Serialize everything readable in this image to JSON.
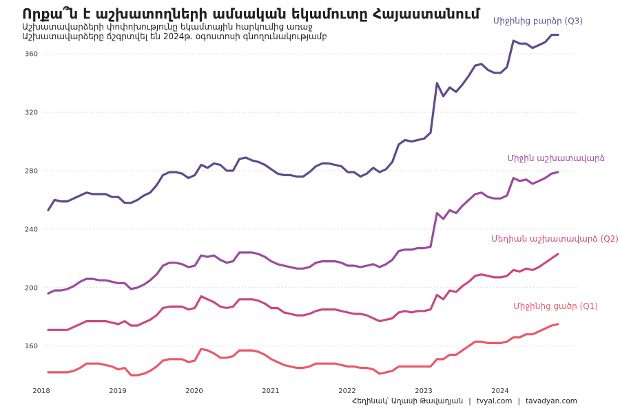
{
  "title": "Որքա՞ն է աշխատողների ամսական եկամուտը Հայաստանում",
  "subtitle_lines": [
    "Աշխատավարձերի փոփոխությունը եկամտային հարկումից առաջ",
    "Աշխատավարձերը ճշգրտվել են 2024թ. օգոստոսի գնողունակությամբ"
  ],
  "caption": {
    "author": "Հեղինակ՝ Աղասի Թավադյան",
    "site1": "tvyal.com",
    "site2": "tavadyan.com",
    "separator": "|"
  },
  "chart_data": {
    "type": "line",
    "grid": "horizontal dotted",
    "x_start": "2018-01",
    "x_ticks": [
      "2018",
      "2019",
      "2020",
      "2021",
      "2022",
      "2023",
      "2024"
    ],
    "y_ticks": [
      160,
      200,
      240,
      280,
      320,
      360
    ],
    "ylim": [
      133,
      378
    ],
    "series": [
      {
        "name": "Միջինից բարձր (Q3)",
        "color": "#5e4b8b",
        "values": [
          253,
          260,
          259,
          259,
          261,
          263,
          265,
          264,
          264,
          264,
          262,
          262,
          258,
          258,
          260,
          263,
          265,
          270,
          277,
          279,
          279,
          278,
          275,
          277,
          284,
          282,
          285,
          284,
          280,
          280,
          288,
          289,
          287,
          286,
          284,
          281,
          278,
          277,
          277,
          276,
          276,
          279,
          283,
          285,
          285,
          284,
          283,
          279,
          279,
          276,
          278,
          282,
          279,
          281,
          286,
          298,
          301,
          300,
          301,
          302,
          306,
          340,
          331,
          337,
          334,
          339,
          345,
          352,
          353,
          349,
          347,
          347,
          351,
          369,
          367,
          367,
          364,
          366,
          368,
          373,
          373
        ]
      },
      {
        "name": "Միջին աշխատավարձ",
        "color": "#9a4b9e",
        "values": [
          196,
          198,
          198,
          199,
          201,
          204,
          206,
          206,
          205,
          205,
          204,
          203,
          203,
          199,
          200,
          202,
          205,
          209,
          215,
          217,
          217,
          216,
          214,
          215,
          222,
          221,
          222,
          219,
          217,
          218,
          224,
          224,
          224,
          223,
          221,
          218,
          216,
          215,
          214,
          213,
          213,
          214,
          217,
          218,
          218,
          218,
          217,
          215,
          215,
          214,
          215,
          216,
          214,
          216,
          219,
          225,
          226,
          226,
          227,
          227,
          228,
          251,
          247,
          253,
          251,
          256,
          260,
          264,
          265,
          262,
          261,
          261,
          263,
          275,
          273,
          274,
          271,
          273,
          275,
          278,
          279
        ]
      },
      {
        "name": "Մեդիան աշխատավարձ (Q2)",
        "color": "#c9497f",
        "values": [
          171,
          171,
          171,
          171,
          173,
          175,
          177,
          177,
          177,
          177,
          176,
          175,
          177,
          174,
          174,
          176,
          178,
          181,
          186,
          187,
          187,
          187,
          185,
          186,
          194,
          192,
          190,
          187,
          186,
          187,
          192,
          192,
          192,
          191,
          189,
          186,
          186,
          183,
          182,
          181,
          181,
          182,
          184,
          185,
          185,
          185,
          184,
          183,
          182,
          182,
          181,
          179,
          177,
          178,
          179,
          183,
          184,
          183,
          184,
          184,
          185,
          195,
          192,
          198,
          197,
          201,
          204,
          208,
          209,
          208,
          207,
          207,
          208,
          212,
          211,
          213,
          212,
          214,
          217,
          220,
          223
        ]
      },
      {
        "name": "Միջինից ցածր (Q1)",
        "color": "#e75a6c",
        "values": [
          142,
          142,
          142,
          142,
          143,
          145,
          148,
          148,
          148,
          147,
          146,
          144,
          145,
          140,
          140,
          141,
          143,
          146,
          150,
          151,
          151,
          151,
          149,
          150,
          158,
          157,
          155,
          152,
          152,
          153,
          157,
          157,
          157,
          156,
          154,
          151,
          149,
          147,
          146,
          145,
          145,
          146,
          148,
          148,
          148,
          148,
          147,
          146,
          146,
          145,
          145,
          144,
          141,
          142,
          143,
          146,
          146,
          146,
          146,
          146,
          146,
          151,
          151,
          154,
          154,
          157,
          160,
          163,
          163,
          162,
          162,
          162,
          163,
          166,
          166,
          168,
          168,
          170,
          172,
          174,
          175
        ]
      }
    ]
  }
}
